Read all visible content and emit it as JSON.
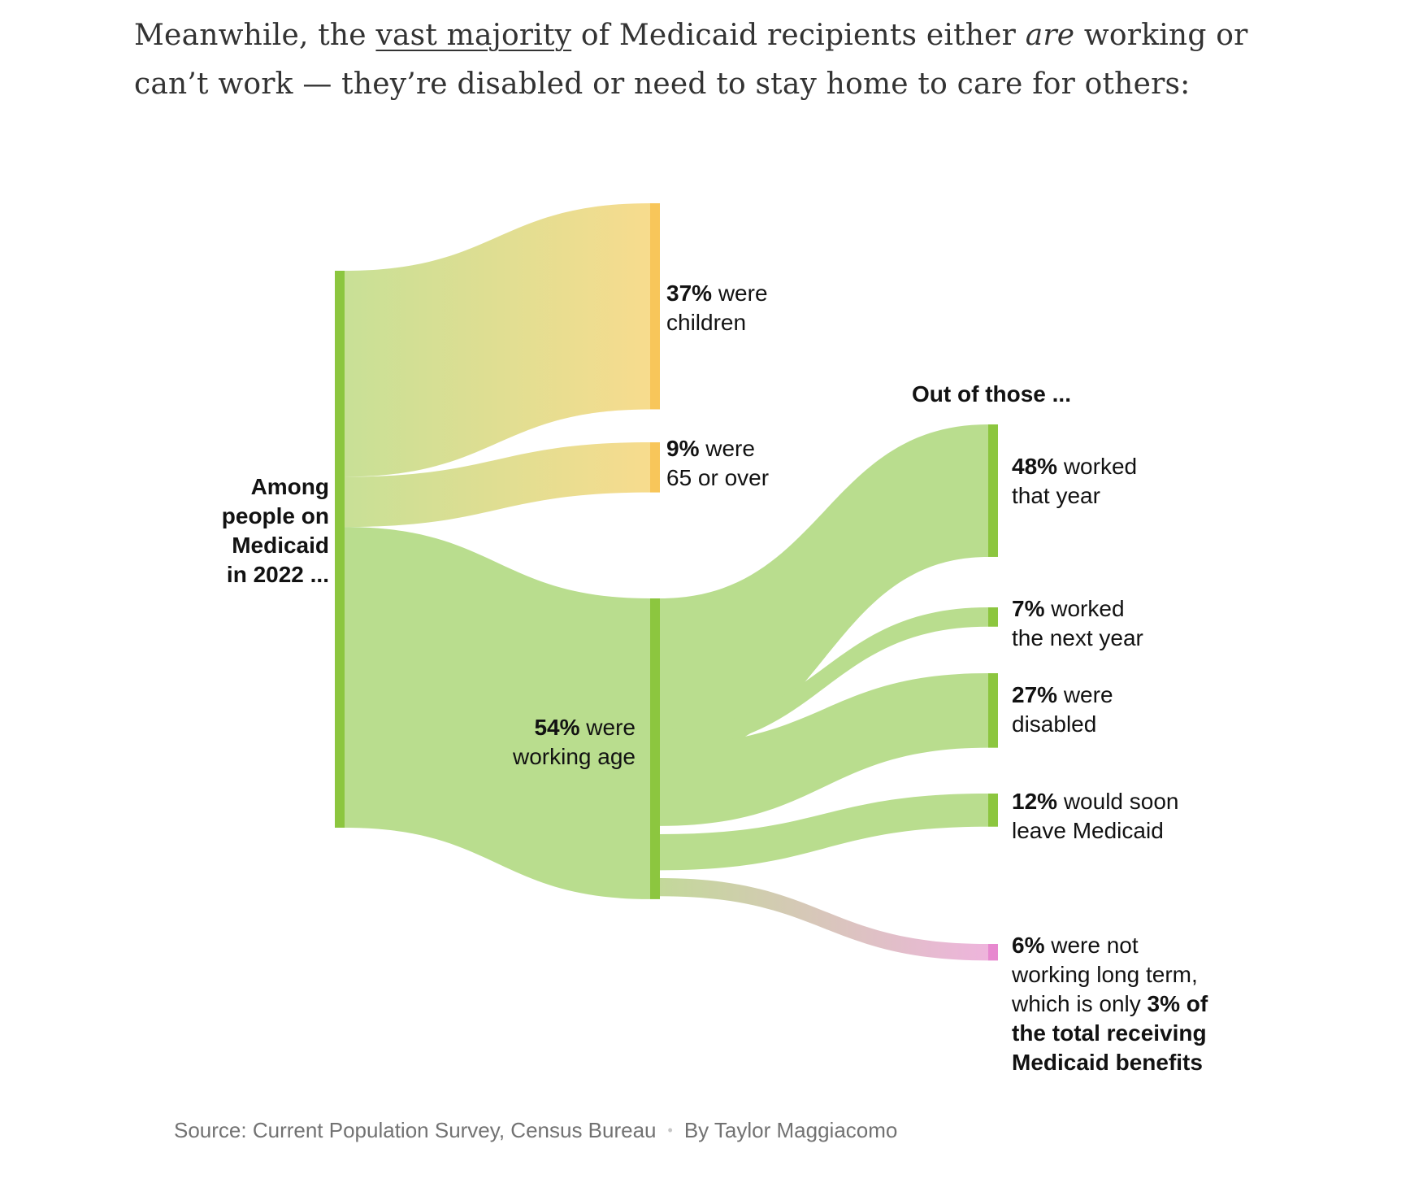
{
  "intro": {
    "text_before": "Meanwhile, the ",
    "link_text": "vast majority",
    "text_middle": " of Medicaid recipients either ",
    "emphasis": "are",
    "text_after": " working or can’t work — they’re disabled or need to stay home to care for others:"
  },
  "chart_data": {
    "type": "sankey",
    "source_label": [
      "Among",
      "people on",
      "Medicaid",
      "in 2022 ..."
    ],
    "second_stage_heading": "Out of those ...",
    "first_split": [
      {
        "key": "children",
        "value": 37,
        "value_text": "37%",
        "text": [
          "were",
          "children"
        ],
        "color": "#f7d37a"
      },
      {
        "key": "over65",
        "value": 9,
        "value_text": "9%",
        "text": [
          "were",
          "65 or over"
        ],
        "color": "#f7d37a"
      },
      {
        "key": "working_age",
        "value": 54,
        "value_text": "54%",
        "text": [
          "were",
          "working age"
        ],
        "color": "#8cc63f"
      }
    ],
    "second_split": [
      {
        "key": "worked_that_year",
        "value": 48,
        "value_text": "48%",
        "text": [
          "worked",
          "that year"
        ],
        "color": "#8cc63f"
      },
      {
        "key": "worked_next_year",
        "value": 7,
        "value_text": "7%",
        "text": [
          "worked",
          "the next year"
        ],
        "color": "#8cc63f"
      },
      {
        "key": "disabled",
        "value": 27,
        "value_text": "27%",
        "text": [
          "were",
          "disabled"
        ],
        "color": "#8cc63f"
      },
      {
        "key": "soon_leave",
        "value": 12,
        "value_text": "12%",
        "text": [
          "would soon",
          "leave Medicaid"
        ],
        "color": "#8cc63f"
      },
      {
        "key": "not_working",
        "value": 6,
        "value_text": "6%",
        "text": [
          "were not",
          "working long term,",
          "which is only"
        ],
        "bold_tail": [
          "3% of",
          "the total receiving",
          "Medicaid benefits"
        ],
        "share_of_total": 3,
        "color": "#e78fcf"
      }
    ],
    "colors": {
      "green_node": "#8cc63f",
      "green_flow": "#b9dd8e",
      "yellow_node": "#f8c65a",
      "yellow_flow": "#f6dd90",
      "pink_node": "#e788cf",
      "pink_flow": "#eab5da"
    }
  },
  "credit": {
    "source": "Source: Current Population Survey, Census Bureau",
    "separator": "•",
    "byline": "By Taylor Maggiacomo"
  }
}
